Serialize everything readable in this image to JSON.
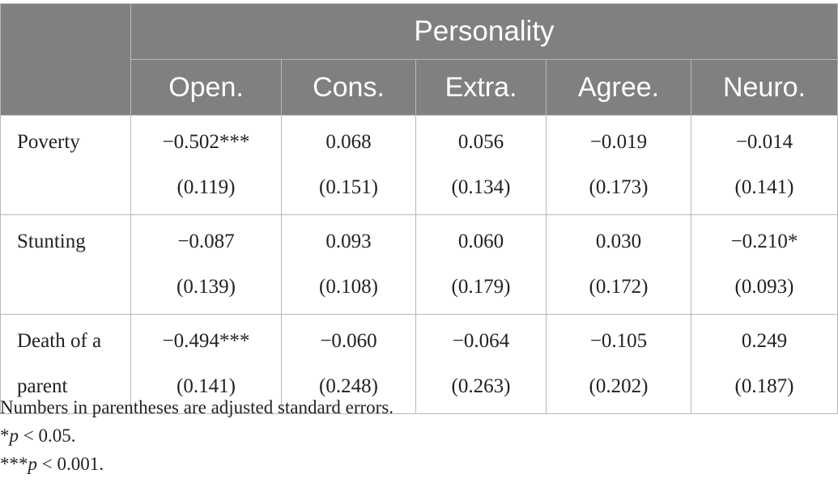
{
  "table": {
    "group_header": "Personality",
    "columns": [
      "Open.",
      "Cons.",
      "Extra.",
      "Agree.",
      "Neuro."
    ],
    "rows": [
      {
        "label_lines": [
          "Poverty",
          ""
        ],
        "coef": [
          "−0.502***",
          "0.068",
          "0.056",
          "−0.019",
          "−0.014"
        ],
        "se": [
          "(0.119)",
          "(0.151)",
          "(0.134)",
          "(0.173)",
          "(0.141)"
        ]
      },
      {
        "label_lines": [
          "Stunting",
          ""
        ],
        "coef": [
          "−0.087",
          "0.093",
          "0.060",
          "0.030",
          "−0.210*"
        ],
        "se": [
          "(0.139)",
          "(0.108)",
          "(0.179)",
          "(0.172)",
          "(0.093)"
        ]
      },
      {
        "label_lines": [
          "Death of a",
          "parent"
        ],
        "coef": [
          "−0.494***",
          "−0.060",
          "−0.064",
          "−0.105",
          "0.249"
        ],
        "se": [
          "(0.141)",
          "(0.248)",
          "(0.263)",
          "(0.202)",
          "(0.187)"
        ]
      }
    ]
  },
  "notes": {
    "line1": "Numbers in parentheses are adjusted standard errors.",
    "sig1_stars": "*",
    "sig1_p": "p",
    "sig1_rest": " < 0.05.",
    "sig2_stars": "***",
    "sig2_p": "p",
    "sig2_rest": " < 0.001."
  }
}
